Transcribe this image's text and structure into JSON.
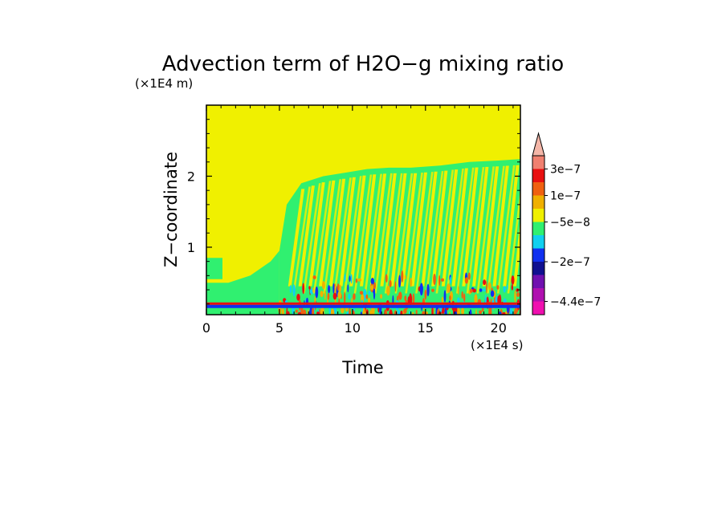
{
  "chart_data": {
    "type": "heatmap",
    "title": "Advection term of H2O−g mixing ratio",
    "xlabel": "Time",
    "ylabel": "Z−coordinate",
    "x_unit": "(×1E4 s)",
    "y_unit": "(×1E4 m)",
    "xlim": [
      0,
      21.5
    ],
    "ylim": [
      0.05,
      3.0
    ],
    "x_ticks": [
      {
        "value": 0,
        "label": "0"
      },
      {
        "value": 5,
        "label": "5"
      },
      {
        "value": 10,
        "label": "10"
      },
      {
        "value": 15,
        "label": "15"
      },
      {
        "value": 20,
        "label": "20"
      }
    ],
    "y_ticks": [
      {
        "value": 1,
        "label": "1"
      },
      {
        "value": 2,
        "label": "2"
      }
    ],
    "colorbar": {
      "extend_max": true,
      "extend_color": "#f4b6a8",
      "bands": [
        "#f08070",
        "#e81010",
        "#f06010",
        "#f0b000",
        "#f0f000",
        "#30f070",
        "#10d0f0",
        "#1030f0",
        "#101090",
        "#7010b0",
        "#b010b0",
        "#f010b0"
      ],
      "labels": [
        {
          "text": "3e−7",
          "band_edge": 1
        },
        {
          "text": "1e−7",
          "band_edge": 3
        },
        {
          "text": "−5e−8",
          "band_edge": 5
        },
        {
          "text": "−2e−7",
          "band_edge": 8
        },
        {
          "text": "−4.4e−7",
          "band_edge": 11
        }
      ]
    },
    "background_color": "#f0f000",
    "fill_color": "#30f070",
    "regions": [
      {
        "name": "early-low-green",
        "polygon": [
          [
            0,
            0.05
          ],
          [
            0,
            0.5
          ],
          [
            1.5,
            0.5
          ],
          [
            3,
            0.6
          ],
          [
            4.4,
            0.8
          ],
          [
            5,
            0.95
          ],
          [
            5,
            0.05
          ]
        ]
      },
      {
        "name": "early-patch",
        "polygon": [
          [
            0,
            0.55
          ],
          [
            0,
            0.85
          ],
          [
            1.1,
            0.85
          ],
          [
            1.1,
            0.55
          ]
        ]
      },
      {
        "name": "main-green",
        "polygon": [
          [
            5,
            0.05
          ],
          [
            5,
            0.95
          ],
          [
            5.5,
            1.6
          ],
          [
            6.5,
            1.9
          ],
          [
            8,
            2.0
          ],
          [
            9.5,
            2.05
          ],
          [
            11,
            2.1
          ],
          [
            12.5,
            2.12
          ],
          [
            14,
            2.12
          ],
          [
            16,
            2.15
          ],
          [
            18,
            2.2
          ],
          [
            20,
            2.22
          ],
          [
            21.5,
            2.24
          ],
          [
            21.5,
            0.05
          ]
        ]
      }
    ],
    "streaks": [
      {
        "x_start": 5.6,
        "spacing": 0.7,
        "y_low": 0.45,
        "lean": 0.9,
        "width": 0.22
      },
      {
        "x_start": 5.9,
        "spacing": 0.7,
        "y_low": 0.35,
        "lean": 1.1,
        "width": 0.14
      }
    ],
    "boundary_layer": {
      "line_z": 0.2,
      "line_color": "#e81010",
      "under_color": "#1030f0",
      "x_start": 0,
      "x_end": 21.5
    },
    "turbulent_spots": {
      "x_start": 5,
      "x_end": 21.5,
      "z_low": 0.05,
      "z_high": 0.6,
      "colors": [
        "#f06010",
        "#f0b000",
        "#10d0f0",
        "#1030f0",
        "#e81010"
      ]
    }
  }
}
